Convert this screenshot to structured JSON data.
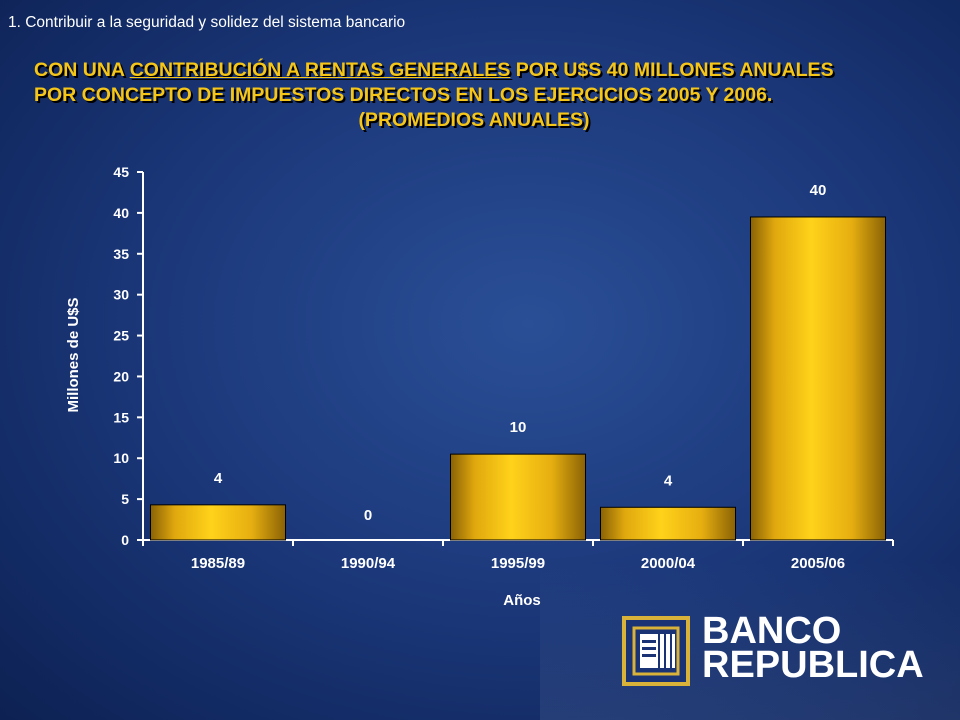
{
  "slide": {
    "section_title": "1.  Contribuir a la seguridad y solidez del sistema  bancario",
    "headline_part1": "CON UNA ",
    "headline_underlined": "CONTRIBUCIÓN A RENTAS GENERALES",
    "headline_part2": " POR U$S 40 MILLONES ANUALES",
    "headline_line2": "POR CONCEPTO DE IMPUESTOS DIRECTOS EN LOS EJERCICIOS 2005 Y 2006.",
    "headline_line3": "(PROMEDIOS ANUALES)"
  },
  "logo": {
    "line1": "BANCO",
    "line2": "REPUBLICA"
  },
  "colors": {
    "headline": "#f5c518",
    "bar_light": "#ffd21a",
    "bar_dark": "#a87a08",
    "background": "#1d3a7d"
  },
  "chart_data": {
    "type": "bar",
    "categories": [
      "1985/89",
      "1990/94",
      "1995/99",
      "2000/04",
      "2005/06"
    ],
    "values": [
      4.3,
      0,
      10.5,
      4,
      39.5
    ],
    "data_labels": [
      "4",
      "0",
      "10",
      "4",
      "40"
    ],
    "xlabel": "Años",
    "ylabel": "Millones de U$S",
    "ylim": [
      0,
      45
    ],
    "yticks": [
      0,
      5,
      10,
      15,
      20,
      25,
      30,
      35,
      40,
      45
    ],
    "grid": false,
    "legend": "none"
  }
}
